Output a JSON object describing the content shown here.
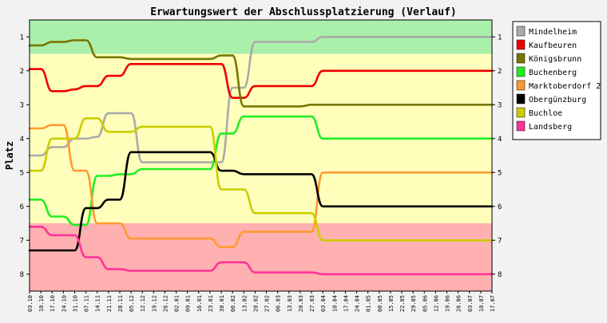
{
  "chart_data": {
    "type": "line",
    "title": "Erwartungswert der Abschlussplatzierung (Verlauf)",
    "ylabel": "Platz",
    "xlabel": "",
    "ylim": [
      0.5,
      8.5
    ],
    "y_inverted": true,
    "y_ticks": [
      "1",
      "2",
      "3",
      "4",
      "5",
      "6",
      "7",
      "8"
    ],
    "grid": false,
    "legend_position": "right",
    "categories": [
      "03.10",
      "10.10",
      "17.10",
      "24.10",
      "31.10",
      "07.11",
      "14.11",
      "21.11",
      "28.11",
      "05.12",
      "12.12",
      "19.12",
      "26.12",
      "02.01",
      "09.01",
      "16.01",
      "23.01",
      "30.01",
      "06.02",
      "13.02",
      "20.02",
      "27.02",
      "06.03",
      "13.03",
      "20.03",
      "27.03",
      "03.04",
      "10.04",
      "17.04",
      "24.04",
      "01.05",
      "08.05",
      "15.05",
      "22.05",
      "29.05",
      "05.06",
      "12.06",
      "19.06",
      "26.06",
      "03.07",
      "10.07",
      "17.07"
    ],
    "bands": [
      {
        "from": 0.5,
        "to": 1.5,
        "color": "#aaf0aa"
      },
      {
        "from": 1.5,
        "to": 6.5,
        "color": "#ffffbb"
      },
      {
        "from": 6.5,
        "to": 8.5,
        "color": "#ffb0b0"
      }
    ],
    "series": [
      {
        "name": "Mindelheim",
        "color": "#aaaaaa",
        "values": [
          4.5,
          4.5,
          4.25,
          4.25,
          4.0,
          4.0,
          3.95,
          3.25,
          3.25,
          3.25,
          4.7,
          4.7,
          4.7,
          4.7,
          4.7,
          4.7,
          4.7,
          4.7,
          2.5,
          2.5,
          1.15,
          1.15,
          1.15,
          1.15,
          1.15,
          1.15,
          1.0,
          1.0,
          1.0,
          1.0,
          1.0,
          1.0,
          1.0,
          1.0,
          1.0,
          1.0,
          1.0,
          1.0,
          1.0,
          1.0,
          1.0,
          1.0
        ]
      },
      {
        "name": "Kaufbeuren",
        "color": "#ee0000",
        "values": [
          1.95,
          1.95,
          2.6,
          2.6,
          2.55,
          2.45,
          2.45,
          2.15,
          2.15,
          1.8,
          1.8,
          1.8,
          1.8,
          1.8,
          1.8,
          1.8,
          1.8,
          1.8,
          2.8,
          2.8,
          2.45,
          2.45,
          2.45,
          2.45,
          2.45,
          2.45,
          2.0,
          2.0,
          2.0,
          2.0,
          2.0,
          2.0,
          2.0,
          2.0,
          2.0,
          2.0,
          2.0,
          2.0,
          2.0,
          2.0,
          2.0,
          2.0
        ]
      },
      {
        "name": "Königsbrunn",
        "color": "#777700",
        "values": [
          1.25,
          1.25,
          1.15,
          1.15,
          1.1,
          1.1,
          1.6,
          1.6,
          1.6,
          1.65,
          1.65,
          1.65,
          1.65,
          1.65,
          1.65,
          1.65,
          1.65,
          1.55,
          1.55,
          3.05,
          3.05,
          3.05,
          3.05,
          3.05,
          3.05,
          3.0,
          3.0,
          3.0,
          3.0,
          3.0,
          3.0,
          3.0,
          3.0,
          3.0,
          3.0,
          3.0,
          3.0,
          3.0,
          3.0,
          3.0,
          3.0,
          3.0
        ]
      },
      {
        "name": "Buchenberg",
        "color": "#22ee22",
        "values": [
          5.8,
          5.8,
          6.3,
          6.3,
          6.55,
          6.55,
          5.1,
          5.1,
          5.05,
          5.05,
          4.9,
          4.9,
          4.9,
          4.9,
          4.9,
          4.9,
          4.9,
          3.85,
          3.85,
          3.35,
          3.35,
          3.35,
          3.35,
          3.35,
          3.35,
          3.35,
          4.0,
          4.0,
          4.0,
          4.0,
          4.0,
          4.0,
          4.0,
          4.0,
          4.0,
          4.0,
          4.0,
          4.0,
          4.0,
          4.0,
          4.0,
          4.0
        ]
      },
      {
        "name": "Marktoberdorf 2",
        "color": "#ff9933",
        "values": [
          3.7,
          3.7,
          3.6,
          3.6,
          4.95,
          4.95,
          6.5,
          6.5,
          6.5,
          6.95,
          6.95,
          6.95,
          6.95,
          6.95,
          6.95,
          6.95,
          6.95,
          7.2,
          7.2,
          6.75,
          6.75,
          6.75,
          6.75,
          6.75,
          6.75,
          6.75,
          5.0,
          5.0,
          5.0,
          5.0,
          5.0,
          5.0,
          5.0,
          5.0,
          5.0,
          5.0,
          5.0,
          5.0,
          5.0,
          5.0,
          5.0,
          5.0
        ]
      },
      {
        "name": "Obergünzburg",
        "color": "#000000",
        "values": [
          7.3,
          7.3,
          7.3,
          7.3,
          7.3,
          6.05,
          6.05,
          5.8,
          5.8,
          4.4,
          4.4,
          4.4,
          4.4,
          4.4,
          4.4,
          4.4,
          4.4,
          4.95,
          4.95,
          5.05,
          5.05,
          5.05,
          5.05,
          5.05,
          5.05,
          5.05,
          6.0,
          6.0,
          6.0,
          6.0,
          6.0,
          6.0,
          6.0,
          6.0,
          6.0,
          6.0,
          6.0,
          6.0,
          6.0,
          6.0,
          6.0,
          6.0
        ]
      },
      {
        "name": "Buchloe",
        "color": "#cccc00",
        "values": [
          4.95,
          4.95,
          4.0,
          4.0,
          4.0,
          3.4,
          3.4,
          3.8,
          3.8,
          3.8,
          3.65,
          3.65,
          3.65,
          3.65,
          3.65,
          3.65,
          3.65,
          5.5,
          5.5,
          5.5,
          6.2,
          6.2,
          6.2,
          6.2,
          6.2,
          6.2,
          7.0,
          7.0,
          7.0,
          7.0,
          7.0,
          7.0,
          7.0,
          7.0,
          7.0,
          7.0,
          7.0,
          7.0,
          7.0,
          7.0,
          7.0,
          7.0
        ]
      },
      {
        "name": "Landsberg",
        "color": "#ff3399",
        "values": [
          6.6,
          6.6,
          6.85,
          6.85,
          6.85,
          7.5,
          7.5,
          7.85,
          7.85,
          7.9,
          7.9,
          7.9,
          7.9,
          7.9,
          7.9,
          7.9,
          7.9,
          7.65,
          7.65,
          7.65,
          7.95,
          7.95,
          7.95,
          7.95,
          7.95,
          7.95,
          8.0,
          8.0,
          8.0,
          8.0,
          8.0,
          8.0,
          8.0,
          8.0,
          8.0,
          8.0,
          8.0,
          8.0,
          8.0,
          8.0,
          8.0,
          8.0
        ]
      }
    ]
  }
}
